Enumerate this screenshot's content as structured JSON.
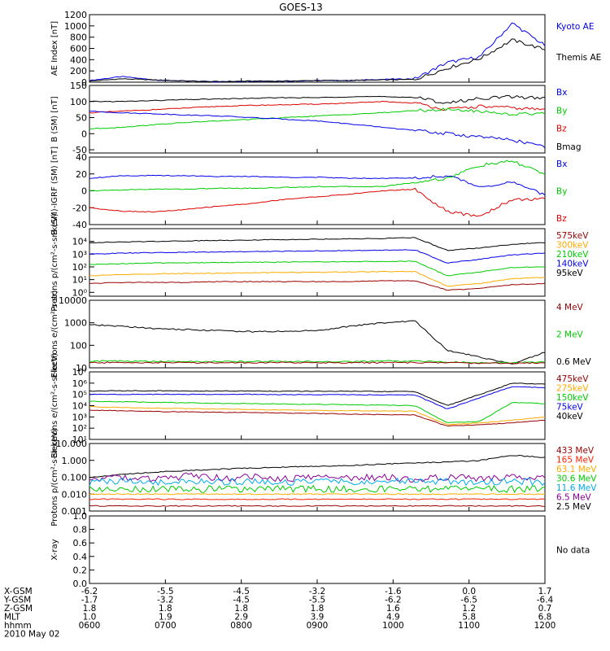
{
  "title": "GOES-13",
  "colors": {
    "black": "#000000",
    "blue": "#0000ee",
    "red": "#dd0000",
    "green": "#00cc00",
    "orange": "#ffaa00",
    "darkred": "#990000",
    "cyan": "#00aaee",
    "purple": "#880099",
    "violet": "#8800cc",
    "brightred": "#ff2200"
  },
  "chart_data": [
    {
      "type": "line",
      "ylabel": "AE Index [nT]",
      "ylim": [
        0,
        1200
      ],
      "yticks": [
        "0",
        "200",
        "400",
        "600",
        "800",
        "1000",
        "1200"
      ],
      "legend": [
        {
          "name": "Kyoto AE",
          "color": "blue"
        },
        {
          "name": "Themis AE",
          "color": "black"
        }
      ],
      "series": [
        {
          "name": "Kyoto AE",
          "color": "blue",
          "values": [
            30,
            100,
            40,
            20,
            10,
            20,
            20,
            30,
            30,
            50,
            60,
            350,
            450,
            1050,
            650
          ]
        },
        {
          "name": "Themis AE",
          "color": "black",
          "values": [
            20,
            60,
            40,
            20,
            10,
            20,
            20,
            30,
            30,
            40,
            50,
            250,
            420,
            750,
            580
          ]
        }
      ]
    },
    {
      "type": "line",
      "ylabel": "B (SM) [nT]",
      "ylim": [
        -60,
        150
      ],
      "yticks": [
        "-50",
        "0",
        "50",
        "100",
        "150"
      ],
      "legend": [
        {
          "name": "Bx",
          "color": "blue"
        },
        {
          "name": "By",
          "color": "green"
        },
        {
          "name": "Bz",
          "color": "red"
        },
        {
          "name": "Bmag",
          "color": "black"
        }
      ],
      "series": [
        {
          "name": "Bmag",
          "color": "black",
          "values": [
            100,
            100,
            103,
            106,
            108,
            110,
            112,
            112,
            115,
            115,
            113,
            95,
            110,
            115,
            110
          ]
        },
        {
          "name": "Bz",
          "color": "red",
          "values": [
            65,
            70,
            75,
            80,
            85,
            88,
            90,
            92,
            95,
            100,
            95,
            75,
            85,
            80,
            75
          ]
        },
        {
          "name": "By",
          "color": "green",
          "values": [
            15,
            20,
            28,
            35,
            40,
            45,
            50,
            55,
            60,
            65,
            72,
            75,
            70,
            60,
            65
          ]
        },
        {
          "name": "Bx",
          "color": "blue",
          "values": [
            70,
            65,
            62,
            58,
            55,
            50,
            45,
            40,
            30,
            20,
            10,
            0,
            -10,
            -20,
            -40
          ]
        }
      ]
    },
    {
      "type": "line",
      "ylabel": "B (SM)-IGRF (SM) [nT]",
      "ylim": [
        -40,
        40
      ],
      "yticks": [
        "-40",
        "-20",
        "0",
        "20",
        "40"
      ],
      "legend": [
        {
          "name": "Bx",
          "color": "blue"
        },
        {
          "name": "By",
          "color": "green"
        },
        {
          "name": "Bz",
          "color": "red"
        }
      ],
      "series": [
        {
          "name": "Bx",
          "color": "blue",
          "values": [
            15,
            18,
            18,
            18,
            17,
            17,
            16,
            16,
            15,
            15,
            15,
            18,
            5,
            10,
            -5
          ]
        },
        {
          "name": "By",
          "color": "green",
          "values": [
            0,
            1,
            2,
            2,
            3,
            3,
            4,
            5,
            5,
            5,
            10,
            15,
            30,
            35,
            20
          ]
        },
        {
          "name": "Bz",
          "color": "red",
          "values": [
            -20,
            -24,
            -25,
            -22,
            -18,
            -15,
            -10,
            -7,
            -4,
            0,
            2,
            -25,
            -30,
            -10,
            -10
          ]
        }
      ]
    },
    {
      "type": "line",
      "ylabel": "Protons p/(cm²-s-sr-keV)",
      "log": true,
      "ylim": [
        0.5,
        100000
      ],
      "yticks": [
        "10⁰",
        "10¹",
        "10²",
        "10³",
        "10⁴"
      ],
      "legend": [
        {
          "name": "575keV",
          "color": "darkred"
        },
        {
          "name": "300keV",
          "color": "orange"
        },
        {
          "name": "210keV",
          "color": "green"
        },
        {
          "name": "140keV",
          "color": "blue"
        },
        {
          "name": "95keV",
          "color": "black"
        }
      ],
      "series": [
        {
          "name": "95keV",
          "color": "black",
          "values": [
            8000,
            9000,
            10000,
            11000,
            12000,
            13000,
            14000,
            15000,
            16000,
            17000,
            20000,
            2000,
            3000,
            6000,
            8000
          ]
        },
        {
          "name": "140keV",
          "color": "blue",
          "values": [
            1000,
            1200,
            1300,
            1400,
            1500,
            1600,
            1700,
            1800,
            1900,
            2000,
            2200,
            200,
            400,
            900,
            1200
          ]
        },
        {
          "name": "210keV",
          "color": "green",
          "values": [
            150,
            180,
            200,
            210,
            220,
            230,
            240,
            250,
            260,
            270,
            280,
            20,
            40,
            90,
            100
          ]
        },
        {
          "name": "300keV",
          "color": "orange",
          "values": [
            20,
            25,
            28,
            30,
            32,
            34,
            36,
            38,
            40,
            42,
            44,
            3,
            5,
            12,
            15
          ]
        },
        {
          "name": "575keV",
          "color": "darkred",
          "values": [
            5,
            6,
            6,
            6,
            7,
            7,
            7,
            7,
            7,
            8,
            8,
            1.5,
            2,
            4,
            5
          ]
        }
      ]
    },
    {
      "type": "line",
      "ylabel": "Electrons e/(cm²-s-sr)",
      "log": true,
      "ylim": [
        10,
        10000
      ],
      "yticks": [
        "10",
        "100",
        "1000",
        "10000"
      ],
      "legend": [
        {
          "name": "4 MeV",
          "color": "darkred"
        },
        {
          "name": "2 MeV",
          "color": "green"
        },
        {
          "name": "0.6 MeV",
          "color": "black"
        }
      ],
      "series": [
        {
          "name": "0.6 MeV",
          "color": "black",
          "values": [
            800,
            700,
            550,
            500,
            450,
            400,
            420,
            450,
            700,
            1000,
            1200,
            60,
            30,
            15,
            50
          ]
        },
        {
          "name": "2 MeV",
          "color": "green",
          "values": [
            20,
            20,
            19,
            19,
            19,
            19,
            19,
            19,
            19,
            20,
            20,
            18,
            17,
            17,
            18
          ]
        },
        {
          "name": "4 MeV",
          "color": "darkred",
          "values": [
            17,
            17,
            17,
            17,
            17,
            17,
            17,
            17,
            17,
            17,
            17,
            17,
            16,
            16,
            17
          ]
        }
      ]
    },
    {
      "type": "line",
      "ylabel": "Electrons e/(cm²-s-sr-keV)",
      "log": true,
      "ylim": [
        10,
        10000000
      ],
      "yticks": [
        "10¹",
        "10²",
        "10³",
        "10⁴",
        "10⁵",
        "10⁶",
        "10⁷"
      ],
      "legend": [
        {
          "name": "475keV",
          "color": "darkred"
        },
        {
          "name": "275keV",
          "color": "orange"
        },
        {
          "name": "150keV",
          "color": "green"
        },
        {
          "name": "75keV",
          "color": "blue"
        },
        {
          "name": "40keV",
          "color": "black"
        }
      ],
      "series": [
        {
          "name": "40keV",
          "color": "black",
          "values": [
            200000,
            210000,
            210000,
            200000,
            200000,
            200000,
            190000,
            190000,
            190000,
            180000,
            180000,
            10000,
            100000,
            1000000,
            800000
          ]
        },
        {
          "name": "75keV",
          "color": "blue",
          "values": [
            100000,
            100000,
            100000,
            100000,
            100000,
            100000,
            95000,
            95000,
            95000,
            90000,
            90000,
            5000,
            50000,
            500000,
            400000
          ]
        },
        {
          "name": "150keV",
          "color": "green",
          "values": [
            25000,
            22000,
            20000,
            18000,
            16000,
            15000,
            14000,
            13000,
            12000,
            11000,
            10000,
            300,
            400,
            20000,
            15000
          ]
        },
        {
          "name": "275keV",
          "color": "orange",
          "values": [
            8000,
            7000,
            6000,
            5500,
            5000,
            4500,
            4000,
            3800,
            3600,
            3400,
            3200,
            200,
            300,
            500,
            1000
          ]
        },
        {
          "name": "475keV",
          "color": "darkred",
          "values": [
            4000,
            3500,
            3000,
            2800,
            2600,
            2400,
            2200,
            2000,
            1800,
            1600,
            1500,
            150,
            200,
            300,
            500
          ]
        }
      ]
    },
    {
      "type": "line",
      "ylabel": "Protons p/(cm²-s-sr-keV)",
      "log": true,
      "ylim": [
        0.001,
        10
      ],
      "yticks": [
        "0.001",
        "0.010",
        "0.100",
        "1.000",
        "10.000"
      ],
      "legend": [
        {
          "name": "433 MeV",
          "color": "darkred"
        },
        {
          "name": "165 MeV",
          "color": "brightred"
        },
        {
          "name": "63.1 MeV",
          "color": "orange"
        },
        {
          "name": "30.6 MeV",
          "color": "green"
        },
        {
          "name": "11.6 MeV",
          "color": "cyan"
        },
        {
          "name": "6.5 MeV",
          "color": "purple"
        },
        {
          "name": "2.5 MeV",
          "color": "black"
        }
      ],
      "series": [
        {
          "name": "2.5 MeV",
          "color": "black",
          "values": [
            0.1,
            0.15,
            0.2,
            0.25,
            0.3,
            0.35,
            0.4,
            0.45,
            0.5,
            0.6,
            0.7,
            0.8,
            1.0,
            2.0,
            1.5
          ]
        },
        {
          "name": "6.5 MeV",
          "color": "purple",
          "values": [
            0.08,
            0.1,
            0.07,
            0.12,
            0.09,
            0.1,
            0.08,
            0.11,
            0.09,
            0.1,
            0.08,
            0.1,
            0.09,
            0.11,
            0.1
          ]
        },
        {
          "name": "11.6 MeV",
          "color": "cyan",
          "values": [
            0.05,
            0.06,
            0.05,
            0.06,
            0.05,
            0.06,
            0.05,
            0.06,
            0.05,
            0.06,
            0.05,
            0.06,
            0.05,
            0.06,
            0.05
          ]
        },
        {
          "name": "30.6 MeV",
          "color": "green",
          "values": [
            0.02,
            0.02,
            0.02,
            0.02,
            0.02,
            0.02,
            0.02,
            0.02,
            0.02,
            0.02,
            0.02,
            0.02,
            0.02,
            0.02,
            0.02
          ]
        },
        {
          "name": "63.1 MeV",
          "color": "orange",
          "values": [
            0.01,
            0.01,
            0.01,
            0.01,
            0.01,
            0.01,
            0.01,
            0.01,
            0.01,
            0.01,
            0.01,
            0.01,
            0.01,
            0.01,
            0.01
          ]
        },
        {
          "name": "165 MeV",
          "color": "brightred",
          "values": [
            0.005,
            0.005,
            0.005,
            0.005,
            0.005,
            0.005,
            0.005,
            0.005,
            0.005,
            0.005,
            0.005,
            0.005,
            0.005,
            0.005,
            0.005
          ]
        },
        {
          "name": "433 MeV",
          "color": "darkred",
          "values": [
            0.002,
            0.002,
            0.002,
            0.002,
            0.002,
            0.002,
            0.002,
            0.002,
            0.002,
            0.002,
            0.002,
            0.002,
            0.002,
            0.002,
            0.002
          ]
        }
      ]
    },
    {
      "type": "line",
      "ylabel": "X-ray",
      "ylim": [
        0,
        1.0
      ],
      "yticks": [
        "0.0",
        "0.2",
        "0.4",
        "0.6",
        "0.8",
        "1.0"
      ],
      "legend": [
        {
          "name": "No data",
          "color": "black"
        }
      ],
      "series": []
    }
  ],
  "x_axis": {
    "rows": [
      {
        "label": "X-GSM",
        "values": [
          "-6.2",
          "-5.5",
          "-4.5",
          "-3.2",
          "-1.6",
          "0.0",
          "1.7"
        ]
      },
      {
        "label": "Y-GSM",
        "values": [
          "-1.7",
          "-3.2",
          "-4.5",
          "-5.5",
          "-6.2",
          "-6.5",
          "-6.4"
        ]
      },
      {
        "label": "Z-GSM",
        "values": [
          "1.8",
          "1.8",
          "1.8",
          "1.8",
          "1.6",
          "1.2",
          "0.7"
        ]
      },
      {
        "label": "MLT",
        "values": [
          "1.0",
          "1.9",
          "2.9",
          "3.9",
          "4.9",
          "5.8",
          "6.8"
        ]
      },
      {
        "label": "hhmm",
        "values": [
          "0600",
          "0700",
          "0800",
          "0900",
          "1000",
          "1100",
          "1200"
        ]
      }
    ],
    "date": "2010 May 02"
  }
}
